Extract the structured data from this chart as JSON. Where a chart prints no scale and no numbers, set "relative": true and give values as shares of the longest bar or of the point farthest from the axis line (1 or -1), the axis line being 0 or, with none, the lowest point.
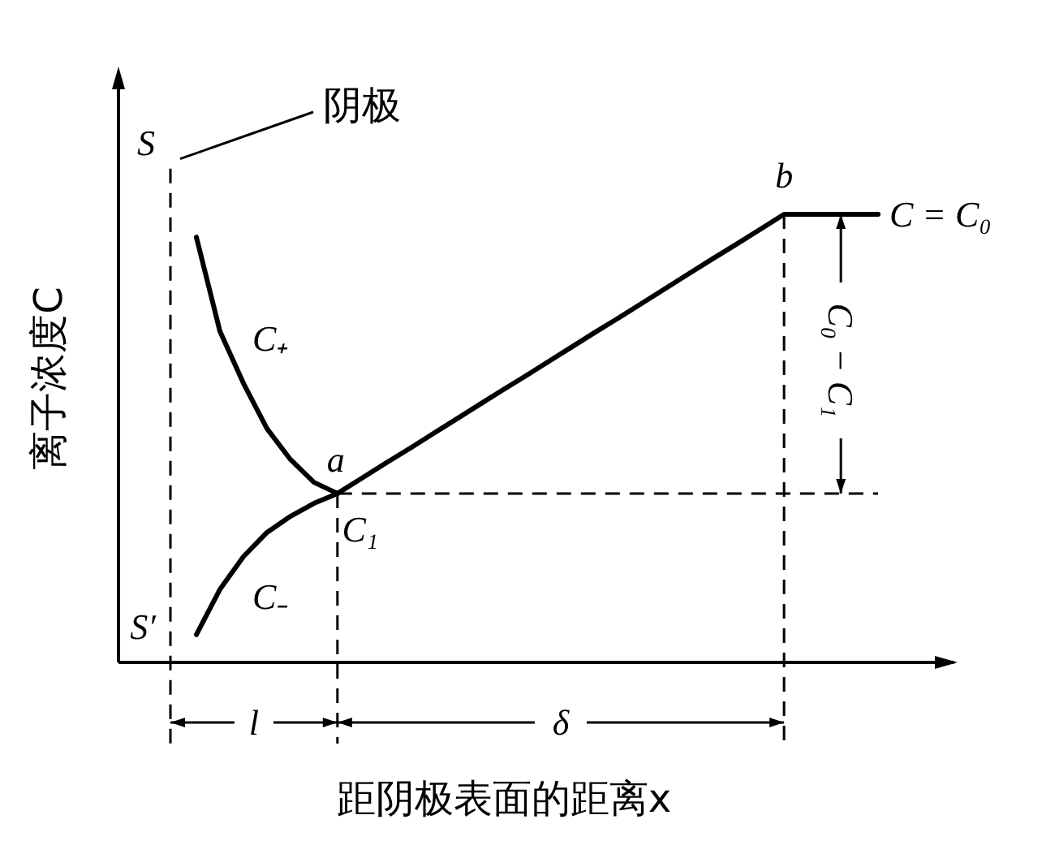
{
  "chart_data": {
    "type": "line",
    "relative": true,
    "xlabel": "距阴极表面的距离x",
    "ylabel": "离子浓度C",
    "line_style": "solid",
    "categories": [
      null,
      null,
      null,
      null,
      null,
      null,
      null,
      null,
      null,
      null,
      null,
      null,
      null,
      null,
      null,
      null,
      null,
      null,
      null,
      null,
      null,
      null,
      null,
      null,
      null,
      null,
      null,
      null,
      null,
      null
    ],
    "series": [
      {
        "name": "C₊",
        "color": "#000000",
        "values": [
          0.949,
          0.739,
          0.623,
          0.522,
          0.453,
          0.402,
          0.377,
          null,
          null,
          null,
          null,
          null,
          null,
          null,
          null,
          null,
          null,
          null,
          null,
          null,
          null,
          null,
          null,
          null,
          null,
          null,
          null,
          null,
          null,
          null
        ]
      },
      {
        "name": "C₋",
        "color": "#000000",
        "values": [
          0.062,
          0.163,
          0.236,
          0.29,
          0.326,
          0.355,
          0.377,
          0.41,
          0.443,
          0.475,
          0.508,
          0.541,
          0.574,
          0.607,
          0.639,
          0.672,
          0.705,
          0.738,
          0.77,
          0.803,
          0.836,
          0.869,
          0.902,
          0.934,
          0.967,
          1,
          1,
          1,
          1,
          1
        ]
      }
    ],
    "ref_lines": [
      {
        "axis": "y",
        "value": 0.377,
        "label": null,
        "line_style": "dashed"
      }
    ],
    "annotations": [
      "阴极",
      "S",
      "S′",
      "a",
      "b",
      "C₁",
      "C = C₀",
      "l",
      "δ",
      "C₀ − C₁"
    ]
  }
}
